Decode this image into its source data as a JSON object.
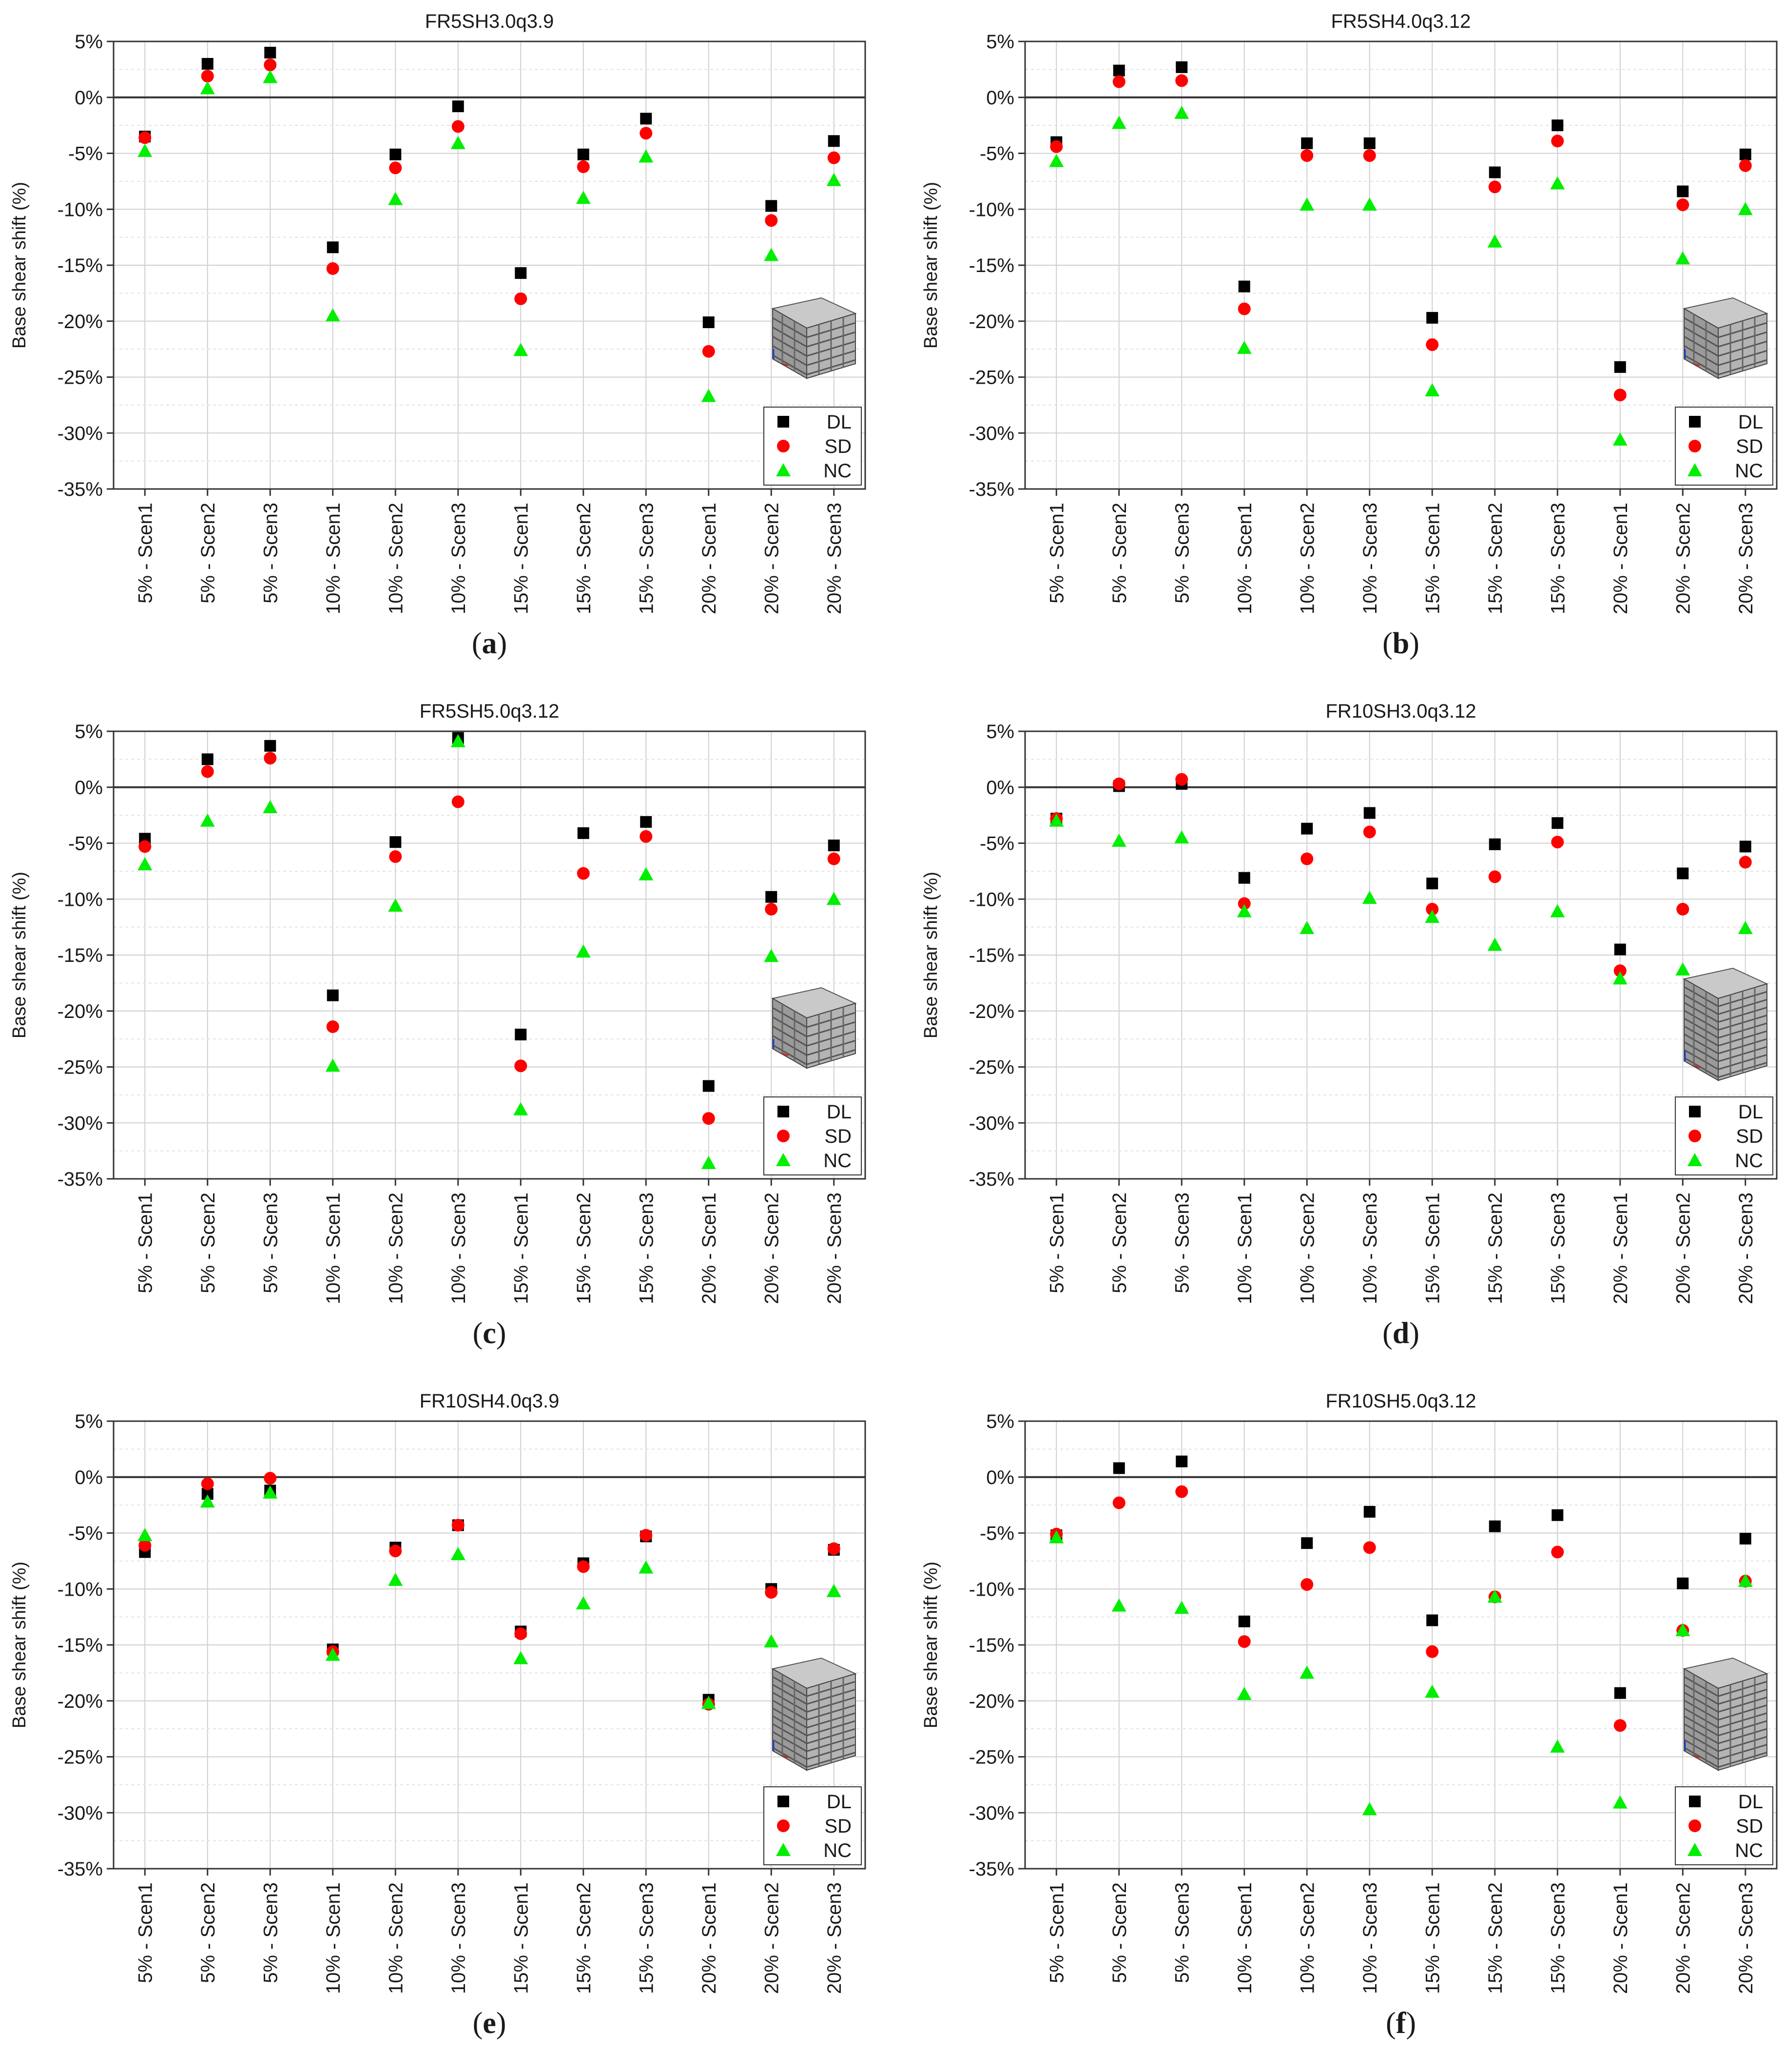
{
  "figure": {
    "captions": [
      "(a)",
      "(b)",
      "(c)",
      "(d)",
      "(e)",
      "(f)"
    ],
    "caption_letters": [
      "a",
      "b",
      "c",
      "d",
      "e",
      "f"
    ]
  },
  "common": {
    "ylabel": "Base shear shift (%)",
    "ylim": [
      -35,
      5
    ],
    "yticks": [
      5,
      0,
      -5,
      -10,
      -15,
      -20,
      -25,
      -30,
      -35
    ],
    "ytick_labels": [
      "5%",
      "0%",
      "-5%",
      "-10%",
      "-15%",
      "-20%",
      "-25%",
      "-30%",
      "-35%"
    ],
    "categories": [
      "5% - Scen1",
      "5% - Scen2",
      "5% - Scen3",
      "10% - Scen1",
      "10% - Scen2",
      "10% - Scen3",
      "15% - Scen1",
      "15% - Scen2",
      "15% - Scen3",
      "20% - Scen1",
      "20% - Scen2",
      "20% - Scen3"
    ],
    "legend_position": "bottom-right",
    "series_names": [
      "DL",
      "SD",
      "NC"
    ],
    "colors": {
      "DL": "#000000",
      "SD": "#ff0000",
      "NC": "#00ee00"
    },
    "markers": {
      "DL": "square",
      "SD": "circle",
      "NC": "triangle"
    },
    "inset_icon": "building-3d-icon"
  },
  "chart_data": [
    {
      "type": "scatter",
      "title": "FR5SH3.0q3.9",
      "xlabel": "",
      "ylabel": "Base shear shift (%)",
      "ylim": [
        -35,
        5
      ],
      "series": [
        {
          "name": "DL",
          "values": [
            -3.5,
            3.0,
            4.0,
            -13.4,
            -5.1,
            -0.8,
            -15.7,
            -5.1,
            -1.9,
            -20.1,
            -9.7,
            -3.9
          ]
        },
        {
          "name": "SD",
          "values": [
            -3.6,
            1.9,
            2.9,
            -15.3,
            -6.3,
            -2.6,
            -18.0,
            -6.2,
            -3.2,
            -22.7,
            -11.0,
            -5.4
          ]
        },
        {
          "name": "NC",
          "values": [
            -4.8,
            0.8,
            1.8,
            -19.5,
            -9.1,
            -4.1,
            -22.6,
            -9.0,
            -5.3,
            -26.7,
            -14.1,
            -7.4
          ]
        }
      ]
    },
    {
      "type": "scatter",
      "title": "FR5SH4.0q3.12",
      "xlabel": "",
      "ylabel": "Base shear shift (%)",
      "ylim": [
        -35,
        5
      ],
      "series": [
        {
          "name": "DL",
          "values": [
            -4.0,
            2.4,
            2.7,
            -16.9,
            -4.1,
            -4.1,
            -19.7,
            -6.7,
            -2.5,
            -24.1,
            -8.4,
            -5.1
          ]
        },
        {
          "name": "SD",
          "values": [
            -4.4,
            1.4,
            1.5,
            -18.9,
            -5.2,
            -5.2,
            -22.1,
            -8.0,
            -3.9,
            -26.6,
            -9.6,
            -6.1
          ]
        },
        {
          "name": "NC",
          "values": [
            -5.7,
            -2.3,
            -1.4,
            -22.4,
            -9.6,
            -9.6,
            -26.2,
            -12.9,
            -7.7,
            -30.6,
            -14.4,
            -10.0
          ]
        }
      ]
    },
    {
      "type": "scatter",
      "title": "FR5SH5.0q3.12",
      "xlabel": "",
      "ylabel": "Base shear shift (%)",
      "ylim": [
        -35,
        5
      ],
      "series": [
        {
          "name": "DL",
          "values": [
            -4.6,
            2.5,
            3.7,
            -18.6,
            -4.9,
            4.4,
            -22.1,
            -4.1,
            -3.1,
            -26.7,
            -9.8,
            -5.2
          ]
        },
        {
          "name": "SD",
          "values": [
            -5.3,
            1.4,
            2.6,
            -21.4,
            -6.2,
            -1.3,
            -24.9,
            -7.7,
            -4.4,
            -29.6,
            -10.9,
            -6.4
          ]
        },
        {
          "name": "NC",
          "values": [
            -6.9,
            -3.0,
            -1.8,
            -24.9,
            -10.6,
            4.1,
            -28.8,
            -14.7,
            -7.8,
            -33.6,
            -15.1,
            -10.0
          ]
        }
      ]
    },
    {
      "type": "scatter",
      "title": "FR10SH3.0q3.12",
      "xlabel": "",
      "ylabel": "Base shear shift (%)",
      "ylim": [
        -35,
        5
      ],
      "series": [
        {
          "name": "DL",
          "values": [
            -2.8,
            0.1,
            0.3,
            -8.1,
            -3.7,
            -2.3,
            -8.6,
            -5.1,
            -3.2,
            -14.5,
            -7.7,
            -5.3
          ]
        },
        {
          "name": "SD",
          "values": [
            -2.8,
            0.3,
            0.7,
            -10.4,
            -6.4,
            -4.0,
            -10.9,
            -8.0,
            -4.9,
            -16.4,
            -10.9,
            -6.7
          ]
        },
        {
          "name": "NC",
          "values": [
            -3.0,
            -4.8,
            -4.5,
            -11.1,
            -12.6,
            -9.9,
            -11.6,
            -14.1,
            -11.1,
            -17.1,
            -16.3,
            -12.6
          ]
        }
      ]
    },
    {
      "type": "scatter",
      "title": "FR10SH4.0q3.9",
      "xlabel": "",
      "ylabel": "Base shear shift (%)",
      "ylim": [
        -35,
        5
      ],
      "series": [
        {
          "name": "DL",
          "values": [
            -6.7,
            -1.5,
            -1.2,
            -15.4,
            -6.3,
            -4.3,
            -13.8,
            -7.7,
            -5.3,
            -19.9,
            -10.0,
            -6.5
          ]
        },
        {
          "name": "SD",
          "values": [
            -6.1,
            -0.6,
            -0.1,
            -15.6,
            -6.6,
            -4.3,
            -14.0,
            -8.0,
            -5.2,
            -20.3,
            -10.3,
            -6.4
          ]
        },
        {
          "name": "NC",
          "values": [
            -5.2,
            -2.2,
            -1.4,
            -15.9,
            -9.2,
            -6.9,
            -16.2,
            -11.3,
            -8.1,
            -20.2,
            -14.7,
            -10.2
          ]
        }
      ]
    },
    {
      "type": "scatter",
      "title": "FR10SH5.0q3.12",
      "xlabel": "",
      "ylabel": "Base shear shift (%)",
      "ylim": [
        -35,
        5
      ],
      "series": [
        {
          "name": "DL",
          "values": [
            -5.2,
            0.8,
            1.4,
            -12.9,
            -5.9,
            -3.1,
            -12.8,
            -4.4,
            -3.4,
            -19.3,
            -9.5,
            -5.5
          ]
        },
        {
          "name": "SD",
          "values": [
            -5.1,
            -2.3,
            -1.3,
            -14.7,
            -9.6,
            -6.3,
            -15.6,
            -10.7,
            -6.7,
            -22.2,
            -13.7,
            -9.3
          ]
        },
        {
          "name": "NC",
          "values": [
            -5.4,
            -11.5,
            -11.7,
            -19.4,
            -17.5,
            -29.7,
            -19.2,
            -10.7,
            -24.1,
            -29.1,
            -13.7,
            -9.3
          ]
        }
      ]
    }
  ]
}
